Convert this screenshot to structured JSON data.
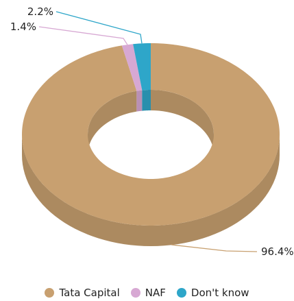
{
  "chart_data": {
    "type": "pie",
    "style": "3d-donut",
    "categories": [
      "Tata Capital",
      "NAF",
      "Don't know"
    ],
    "values": [
      96.4,
      1.4,
      2.2
    ],
    "unit": "%",
    "labels": [
      "96.4%",
      "1.4%",
      "2.2%"
    ],
    "colors": [
      "#c8a070",
      "#d7a8d3",
      "#2ea6c9"
    ],
    "legend_position": "bottom"
  }
}
